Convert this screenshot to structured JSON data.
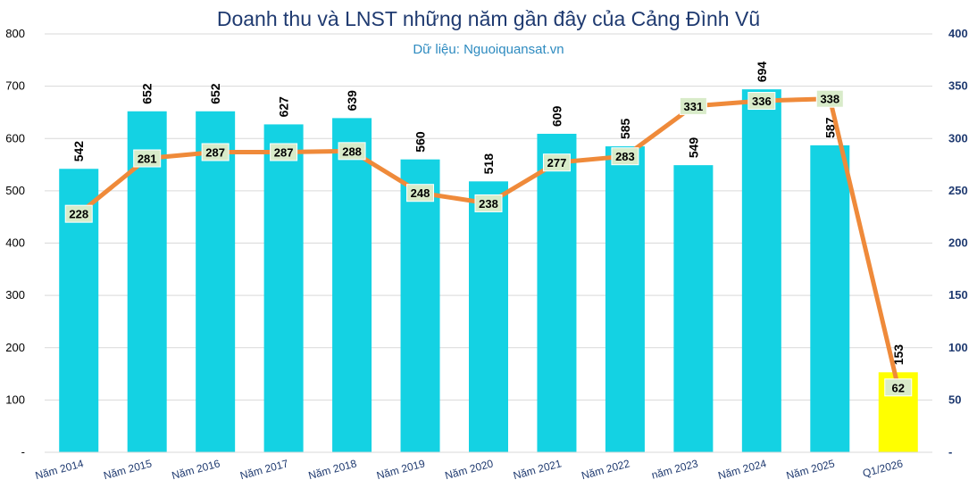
{
  "chart_data": {
    "type": "bar",
    "title": "Doanh thu và LNST những năm gần đây của Cảng Đình Vũ",
    "subtitle": "Dữ liệu: Nguoiquansat.vn",
    "categories": [
      "Năm 2014",
      "Năm 2015",
      "Năm 2016",
      "Năm 2017",
      "Năm 2018",
      "Năm 2019",
      "Năm 2020",
      "Năm 2021",
      "Năm 2022",
      "năm 2023",
      "Năm 2024",
      "Năm 2025",
      "Q1/2026"
    ],
    "series": [
      {
        "type": "bar",
        "axis": "left",
        "color": "#14d2e3",
        "highlight_color": "#ffff00",
        "highlight_index": 12,
        "values": [
          542,
          652,
          652,
          627,
          639,
          560,
          518,
          609,
          585,
          549,
          694,
          587,
          153
        ]
      },
      {
        "type": "line",
        "axis": "right",
        "color": "#ef8a3a",
        "label_bg": "#d8ebc9",
        "values": [
          228,
          281,
          287,
          287,
          288,
          248,
          238,
          277,
          283,
          331,
          336,
          338,
          62
        ]
      }
    ],
    "y_left": {
      "min": 0,
      "max": 800,
      "ticks": [
        "-",
        "100",
        "200",
        "300",
        "400",
        "500",
        "600",
        "700",
        "800"
      ]
    },
    "y_right": {
      "min": 0,
      "max": 400,
      "ticks": [
        "-",
        "50",
        "100",
        "150",
        "200",
        "250",
        "300",
        "350",
        "400"
      ]
    },
    "grid": true,
    "legend": "none"
  }
}
